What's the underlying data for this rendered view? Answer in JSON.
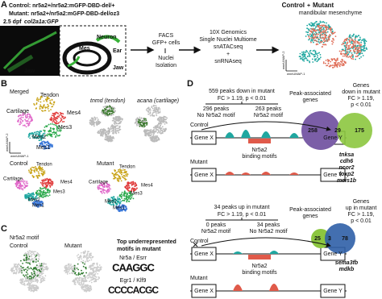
{
  "panel_a": {
    "label": "A",
    "control_genotype": "Control: nr5a2+/nr5a2:mGFP-DBD-del/+",
    "mutant_genotype": "Mutant: nr5a2+/nr5a2:mGFP-DBD-del/oz3",
    "stage": "2.5 dpf",
    "reporter": "col2a1a:GFP",
    "image_label": "Jaw",
    "schematic_labels": [
      "Neuron",
      "Mes",
      "Ear",
      "Jaw"
    ],
    "steps": [
      "FACS",
      "GFP+ cells",
      "Nuclei",
      "Isolation"
    ],
    "method": [
      "10X Genomics",
      "Single Nuclei Multiome",
      "snATACseq",
      "+",
      "snRNAseq"
    ],
    "umap_title": [
      "Control",
      "+",
      "Mutant"
    ],
    "umap_subtitle": "mandibular mesenchyme",
    "y_axis": "wnnUMAP-2",
    "x_axis": "wnnUMAP-1"
  },
  "panel_b": {
    "label": "B",
    "merged_title": "Merged",
    "clusters": [
      "Tendon",
      "Cartilage",
      "Mes4",
      "Mes3",
      "Mes2",
      "Mes1"
    ],
    "marker_titles": [
      "tnmd (tendon)",
      "acana (cartilage)"
    ],
    "control_title": "Control",
    "mutant_title": "Mutant",
    "y_axis": "wnnUMAP-2",
    "x_axis": "wnnUMAP-1"
  },
  "panel_c": {
    "label": "C",
    "title": "Nr5a2 motif",
    "control_title": "Control",
    "mutant_title": "Mutant",
    "motif_heading": [
      "Top underrepresented",
      "motifs in mutant"
    ],
    "motifs": [
      {
        "name": "Nr5a / Esrr",
        "logo": "CAAGGC"
      },
      {
        "name": "Egr1 / Klf9",
        "logo": "CCCCACGC"
      }
    ]
  },
  "panel_d": {
    "label": "D",
    "down": {
      "total": "559 peaks down in mutant",
      "threshold": "FC > 1.19, p < 0.01",
      "no_motif": [
        "296 peaks",
        "No Nr5a2 motif"
      ],
      "motif": [
        "263 peaks",
        "Nr5a2 motif"
      ],
      "control": "Control",
      "mutant": "Mutant",
      "genes": [
        "Gene X",
        "Gene Y"
      ],
      "motif_label": [
        "Nr5a2",
        "binding motifs"
      ],
      "peak_genes": [
        "Peak-associated",
        "genes"
      ],
      "rna_genes": [
        "Genes",
        "down in mutant",
        "FC > 1.19,",
        "p < 0.01"
      ],
      "venn": [
        "258",
        "29",
        "175"
      ],
      "gene_list": [
        "tnksa",
        "cdh6",
        "ncor2",
        "foxp2",
        "meis1b"
      ]
    },
    "up": {
      "total": "34 peaks up in mutant",
      "threshold": "FC > 1.19, p < 0.01",
      "motif": [
        "0 peaks",
        "Nr5a2 motif"
      ],
      "no_motif": [
        "34 peaks",
        "No Nr5a2 motif"
      ],
      "control": "Control",
      "mutant": "Mutant",
      "genes": [
        "Gene X",
        "Gene Y"
      ],
      "motif_label": [
        "Nr5a2",
        "binding motifs"
      ],
      "peak_genes": [
        "Peak-associated",
        "genes"
      ],
      "rna_genes": [
        "Genes",
        "up in mutant",
        "FC > 1.19,",
        "p < 0.01"
      ],
      "venn": [
        "25",
        "3",
        "78"
      ],
      "gene_list": [
        "sema3fb",
        "mdkb"
      ]
    }
  }
}
